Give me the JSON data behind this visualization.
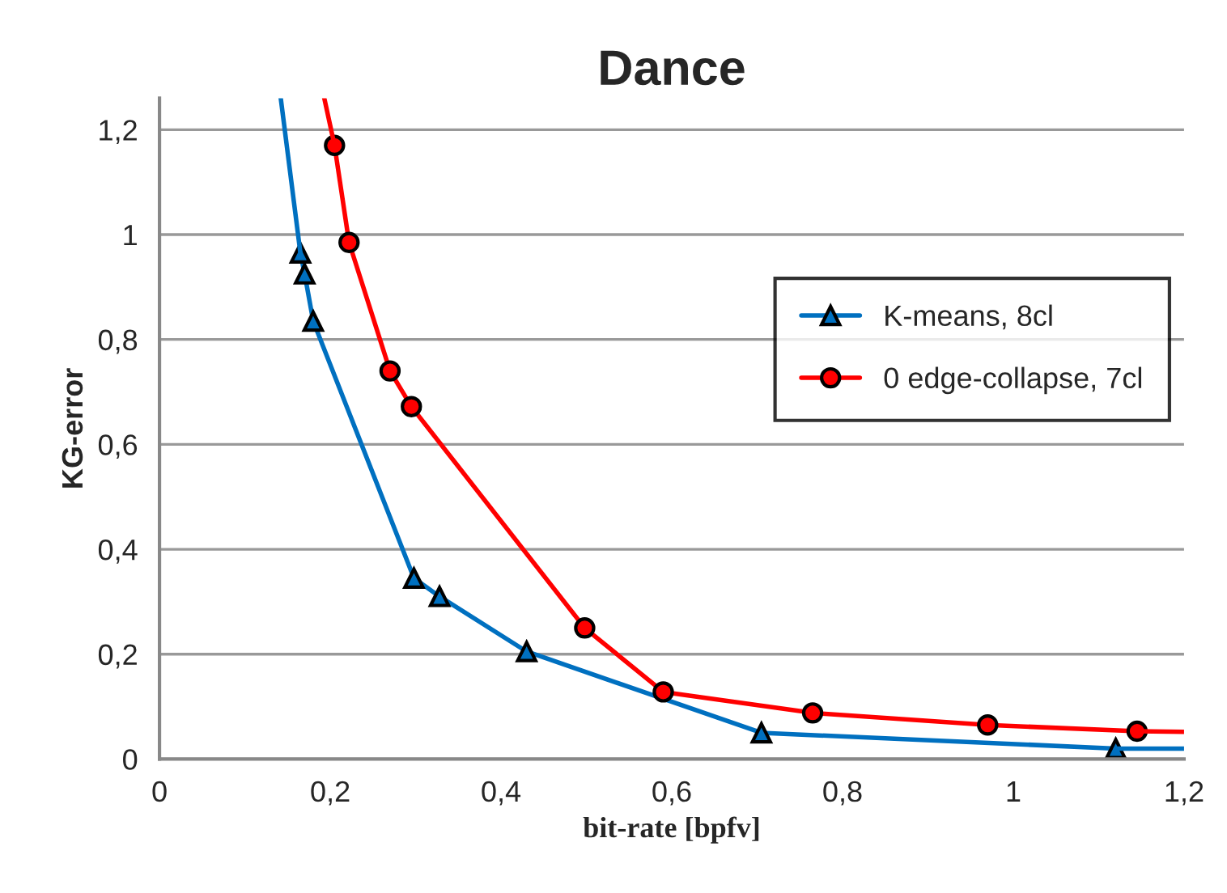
{
  "chart_data": {
    "type": "line",
    "title": "Dance",
    "xlabel": "bit-rate [bpfv]",
    "ylabel": "KG-error",
    "xlim": [
      0,
      1.2
    ],
    "ylim": [
      0,
      1.26
    ],
    "xticks": [
      0,
      {
        "value": 0.2,
        "label": "0,2"
      },
      {
        "value": 0.4,
        "label": "0,4"
      },
      {
        "value": 0.6,
        "label": "0,6"
      },
      {
        "value": 0.8,
        "label": "0,8"
      },
      1,
      {
        "value": 1.2,
        "label": "1,2"
      }
    ],
    "yticks": [
      0,
      {
        "value": 0.2,
        "label": "0,2"
      },
      {
        "value": 0.4,
        "label": "0,4"
      },
      {
        "value": 0.6,
        "label": "0,6"
      },
      {
        "value": 0.8,
        "label": "0,8"
      },
      1,
      {
        "value": 1.2,
        "label": "1,2"
      }
    ],
    "grid": "y",
    "legend": "right",
    "series": [
      {
        "name": "K-means, 8cl",
        "color": "#0070c0",
        "marker": "triangle",
        "x": [
          0.165,
          0.17,
          0.18,
          0.298,
          0.328,
          0.43,
          0.705,
          1.12
        ],
        "values": [
          0.965,
          0.925,
          0.835,
          0.345,
          0.31,
          0.205,
          0.05,
          0.02
        ]
      },
      {
        "name": "0 edge-collapse, 7cl",
        "color": "#ff0000",
        "marker": "circle",
        "x": [
          0.205,
          0.222,
          0.27,
          0.295,
          0.498,
          0.59,
          0.765,
          0.97,
          1.145
        ],
        "values": [
          1.17,
          0.985,
          0.74,
          0.672,
          0.25,
          0.128,
          0.088,
          0.065,
          0.053
        ]
      },
      {
        "color": "#0070c0",
        "marker": "none",
        "x": [
          0.142,
          0.165
        ],
        "values": [
          1.26,
          0.965
        ]
      },
      {
        "color": "#0070c0",
        "marker": "none",
        "x": [
          1.12,
          1.2
        ],
        "values": [
          0.02,
          0.02
        ]
      },
      {
        "color": "#ff0000",
        "marker": "none",
        "x": [
          0.193,
          0.205
        ],
        "values": [
          1.26,
          1.17
        ]
      },
      {
        "color": "#ff0000",
        "marker": "none",
        "x": [
          1.145,
          1.2
        ],
        "values": [
          0.053,
          0.052
        ]
      }
    ]
  }
}
